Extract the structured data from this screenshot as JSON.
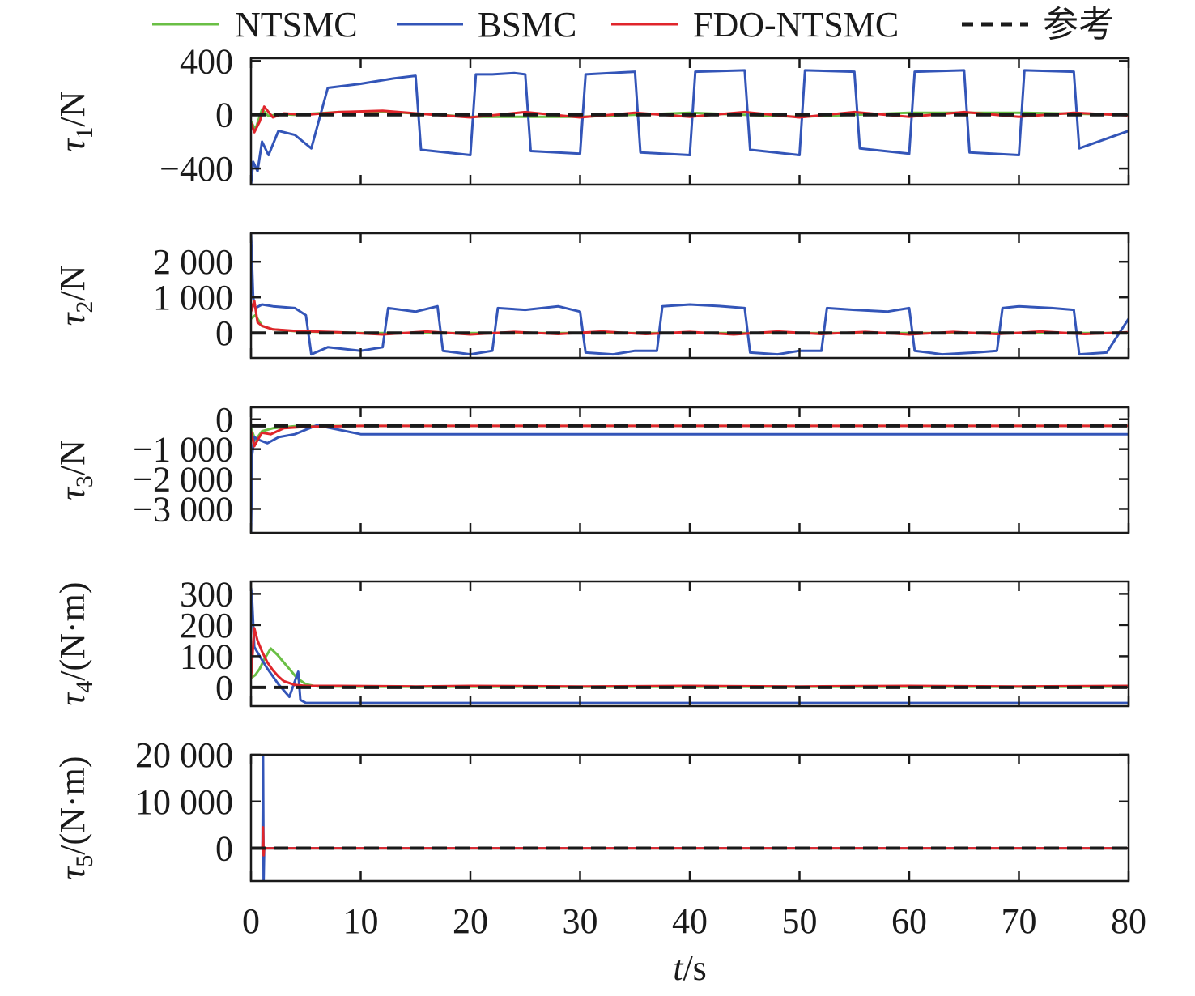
{
  "chart_data": {
    "type": "line",
    "legend": {
      "placement": "top",
      "entries": [
        {
          "label": "NTSMC",
          "color": "#6abf45",
          "style": "solid"
        },
        {
          "label": "BSMC",
          "color": "#3355b8",
          "style": "solid"
        },
        {
          "label": "FDO-NTSMC",
          "color": "#e0252b",
          "style": "solid"
        },
        {
          "label": "参考",
          "color": "#1a1a1a",
          "style": "dashed"
        }
      ]
    },
    "x_axis": {
      "label_var": "t",
      "label_unit": "/s",
      "range": [
        0,
        80
      ],
      "ticks": [
        0,
        10,
        20,
        30,
        40,
        50,
        60,
        70,
        80
      ],
      "tick_labels": [
        "0",
        "10",
        "20",
        "30",
        "40",
        "50",
        "60",
        "70",
        "80"
      ]
    },
    "grid": false,
    "panels": [
      {
        "ylabel_var": "τ",
        "ylabel_sub": "1",
        "ylabel_unit": "/N",
        "ylim": [
          -520,
          420
        ],
        "yticks": [
          400,
          0,
          -400
        ],
        "ytick_labels": [
          "400",
          "0",
          "−400"
        ],
        "reference": 0,
        "series": {
          "BSMC": {
            "t": [
              0,
              0.2,
              0.6,
              1.0,
              1.6,
              2.5,
              4.0,
              5.5,
              7.0,
              10,
              13,
              15,
              15.5,
              20,
              20.5,
              22,
              24,
              25,
              25.5,
              30,
              30.5,
              35,
              35.5,
              40,
              40.5,
              45,
              45.5,
              50,
              50.5,
              55,
              55.5,
              60,
              60.5,
              65,
              65.5,
              70,
              70.5,
              75,
              75.5,
              80
            ],
            "v": [
              -520,
              -350,
              -420,
              -200,
              -300,
              -120,
              -150,
              -250,
              200,
              230,
              270,
              290,
              -260,
              -300,
              300,
              300,
              310,
              300,
              -270,
              -290,
              300,
              320,
              -280,
              -300,
              320,
              330,
              -260,
              -300,
              330,
              320,
              -250,
              -290,
              320,
              330,
              -280,
              -300,
              330,
              320,
              -250,
              -120
            ]
          },
          "FDO-NTSMC": {
            "t": [
              0,
              0.3,
              0.8,
              1.2,
              2.0,
              3.0,
              5,
              8,
              12,
              15,
              20,
              25,
              30,
              35,
              40,
              45,
              50,
              55,
              60,
              65,
              70,
              75,
              80
            ],
            "v": [
              -60,
              -130,
              -50,
              60,
              -20,
              10,
              0,
              20,
              30,
              10,
              -20,
              20,
              -20,
              15,
              -15,
              20,
              -20,
              20,
              -15,
              20,
              -15,
              15,
              -5
            ]
          },
          "NTSMC": {
            "t": [
              0,
              0.4,
              1.0,
              1.6,
              2.5,
              4,
              8,
              12,
              20,
              30,
              40,
              50,
              60,
              70,
              80
            ],
            "v": [
              -50,
              -110,
              40,
              -10,
              5,
              0,
              20,
              25,
              -15,
              -15,
              15,
              -15,
              15,
              15,
              0
            ]
          }
        }
      },
      {
        "ylabel_var": "τ",
        "ylabel_sub": "2",
        "ylabel_unit": "/N",
        "ylim": [
          -700,
          2800
        ],
        "yticks": [
          2000,
          1000,
          0
        ],
        "ytick_labels": [
          "2 000",
          "1 000",
          "0"
        ],
        "reference": 0,
        "series": {
          "BSMC": {
            "t": [
              0,
              0.2,
              0.4,
              1.0,
              2.0,
              4.0,
              5.0,
              5.5,
              7,
              10,
              12,
              12.5,
              15,
              17,
              17.5,
              20,
              22,
              22.5,
              25,
              28,
              30,
              30.5,
              33,
              35,
              37,
              37.5,
              40,
              43,
              45,
              45.5,
              48,
              50,
              52,
              52.5,
              55,
              58,
              60,
              60.5,
              63,
              66,
              68,
              68.5,
              70,
              73,
              75,
              75.5,
              78,
              80
            ],
            "v": [
              2800,
              1000,
              700,
              800,
              750,
              700,
              500,
              -600,
              -400,
              -500,
              -400,
              700,
              600,
              750,
              -500,
              -600,
              -500,
              700,
              650,
              750,
              600,
              -550,
              -600,
              -500,
              -500,
              750,
              800,
              750,
              700,
              -550,
              -600,
              -500,
              -500,
              700,
              650,
              600,
              700,
              -500,
              -600,
              -550,
              -500,
              700,
              750,
              700,
              650,
              -600,
              -550,
              400
            ]
          },
          "FDO-NTSMC": {
            "t": [
              0,
              0.3,
              0.6,
              1.0,
              2.0,
              4,
              8,
              12,
              16,
              20,
              24,
              28,
              32,
              36,
              40,
              44,
              48,
              52,
              56,
              60,
              64,
              68,
              72,
              76,
              80
            ],
            "v": [
              600,
              900,
              300,
              200,
              100,
              60,
              20,
              -40,
              40,
              -40,
              30,
              -30,
              40,
              -30,
              30,
              -40,
              40,
              -30,
              30,
              -40,
              30,
              -30,
              40,
              -30,
              20
            ]
          },
          "NTSMC": {
            "t": [
              0,
              0.4,
              1.0,
              2.0,
              4,
              10,
              20,
              30,
              40,
              50,
              60,
              70,
              80
            ],
            "v": [
              400,
              500,
              200,
              100,
              50,
              0,
              0,
              0,
              0,
              0,
              0,
              0,
              0
            ]
          }
        }
      },
      {
        "ylabel_var": "τ",
        "ylabel_sub": "3",
        "ylabel_unit": "/N",
        "ylim": [
          -3800,
          400
        ],
        "yticks": [
          0,
          -1000,
          -2000,
          -3000
        ],
        "ytick_labels": [
          "0",
          "−1 000",
          "−2 000",
          "−3 000"
        ],
        "reference": -220,
        "series": {
          "BSMC": {
            "t": [
              0,
              0.1,
              0.3,
              0.8,
              1.5,
              2.5,
              4,
              6,
              10,
              20,
              30,
              40,
              50,
              60,
              70,
              80
            ],
            "v": [
              -3800,
              -1200,
              -600,
              -700,
              -800,
              -600,
              -500,
              -200,
              -500,
              -500,
              -500,
              -500,
              -500,
              -500,
              -500,
              -500
            ]
          },
          "FDO-NTSMC": {
            "t": [
              0,
              0.3,
              0.6,
              1.0,
              1.8,
              3,
              5,
              10,
              20,
              30,
              40,
              50,
              60,
              70,
              80
            ],
            "v": [
              -400,
              -900,
              -700,
              -450,
              -500,
              -300,
              -250,
              -220,
              -220,
              -220,
              -220,
              -220,
              -220,
              -220,
              -220
            ]
          },
          "NTSMC": {
            "t": [
              0,
              0.4,
              1.0,
              2,
              4,
              10,
              20,
              30,
              40,
              50,
              60,
              70,
              80
            ],
            "v": [
              -300,
              -700,
              -400,
              -300,
              -230,
              -220,
              -220,
              -220,
              -220,
              -220,
              -220,
              -220,
              -220
            ]
          }
        }
      },
      {
        "ylabel_var": "τ",
        "ylabel_sub": "4",
        "ylabel_unit": "/(N·m)",
        "ylim": [
          -60,
          340
        ],
        "yticks": [
          300,
          200,
          100,
          0
        ],
        "ytick_labels": [
          "300",
          "200",
          "100",
          "0"
        ],
        "reference": 0,
        "series": {
          "NTSMC": {
            "t": [
              0,
              0.4,
              0.8,
              1.2,
              1.8,
              2.4,
              3.0,
              3.6,
              4.2,
              5,
              6,
              10,
              20,
              30,
              40,
              50,
              60,
              70,
              80
            ],
            "v": [
              30,
              40,
              60,
              90,
              125,
              105,
              80,
              55,
              30,
              10,
              3,
              2,
              2,
              2,
              2,
              2,
              2,
              2,
              2
            ]
          },
          "FDO-NTSMC": {
            "t": [
              0,
              0.3,
              0.6,
              1.0,
              1.5,
              2.0,
              2.5,
              3.0,
              4.0,
              5,
              8,
              15,
              20,
              30,
              40,
              50,
              60,
              70,
              80
            ],
            "v": [
              30,
              190,
              150,
              115,
              80,
              55,
              35,
              20,
              8,
              5,
              5,
              3,
              5,
              3,
              5,
              3,
              5,
              3,
              5
            ]
          },
          "BSMC": {
            "t": [
              0,
              0.1,
              0.3,
              0.8,
              1.5,
              2.5,
              3.5,
              4.3,
              4.5,
              5,
              6,
              10,
              20,
              30,
              40,
              50,
              60,
              70,
              80
            ],
            "v": [
              320,
              280,
              130,
              100,
              60,
              10,
              -30,
              50,
              -40,
              -50,
              -50,
              -50,
              -50,
              -50,
              -50,
              -50,
              -50,
              -50,
              -50
            ]
          }
        }
      },
      {
        "ylabel_var": "τ",
        "ylabel_sub": "5",
        "ylabel_unit": "/(N·m)",
        "ylim": [
          -7000,
          20000
        ],
        "yticks": [
          20000,
          10000,
          0
        ],
        "ytick_labels": [
          "20 000",
          "10 000",
          "0"
        ],
        "reference": 0,
        "series": {
          "NTSMC": {
            "t": [
              0,
              1,
              10,
              20,
              30,
              40,
              50,
              60,
              70,
              80
            ],
            "v": [
              0,
              0,
              0,
              0,
              0,
              0,
              0,
              0,
              0,
              0
            ]
          },
          "BSMC": {
            "t": [
              0,
              1.05,
              1.1,
              1.15,
              1.2,
              1.25,
              10,
              20,
              30,
              40,
              50,
              60,
              70,
              80
            ],
            "v": [
              0,
              0,
              20000,
              -7000,
              0,
              0,
              0,
              0,
              0,
              0,
              0,
              0,
              0,
              0
            ]
          },
          "FDO-NTSMC": {
            "t": [
              0,
              1.05,
              1.1,
              1.15,
              1.2,
              10,
              20,
              30,
              40,
              50,
              60,
              70,
              80
            ],
            "v": [
              0,
              0,
              4500,
              -1500,
              0,
              0,
              0,
              0,
              0,
              0,
              0,
              0,
              0
            ]
          }
        }
      }
    ]
  }
}
